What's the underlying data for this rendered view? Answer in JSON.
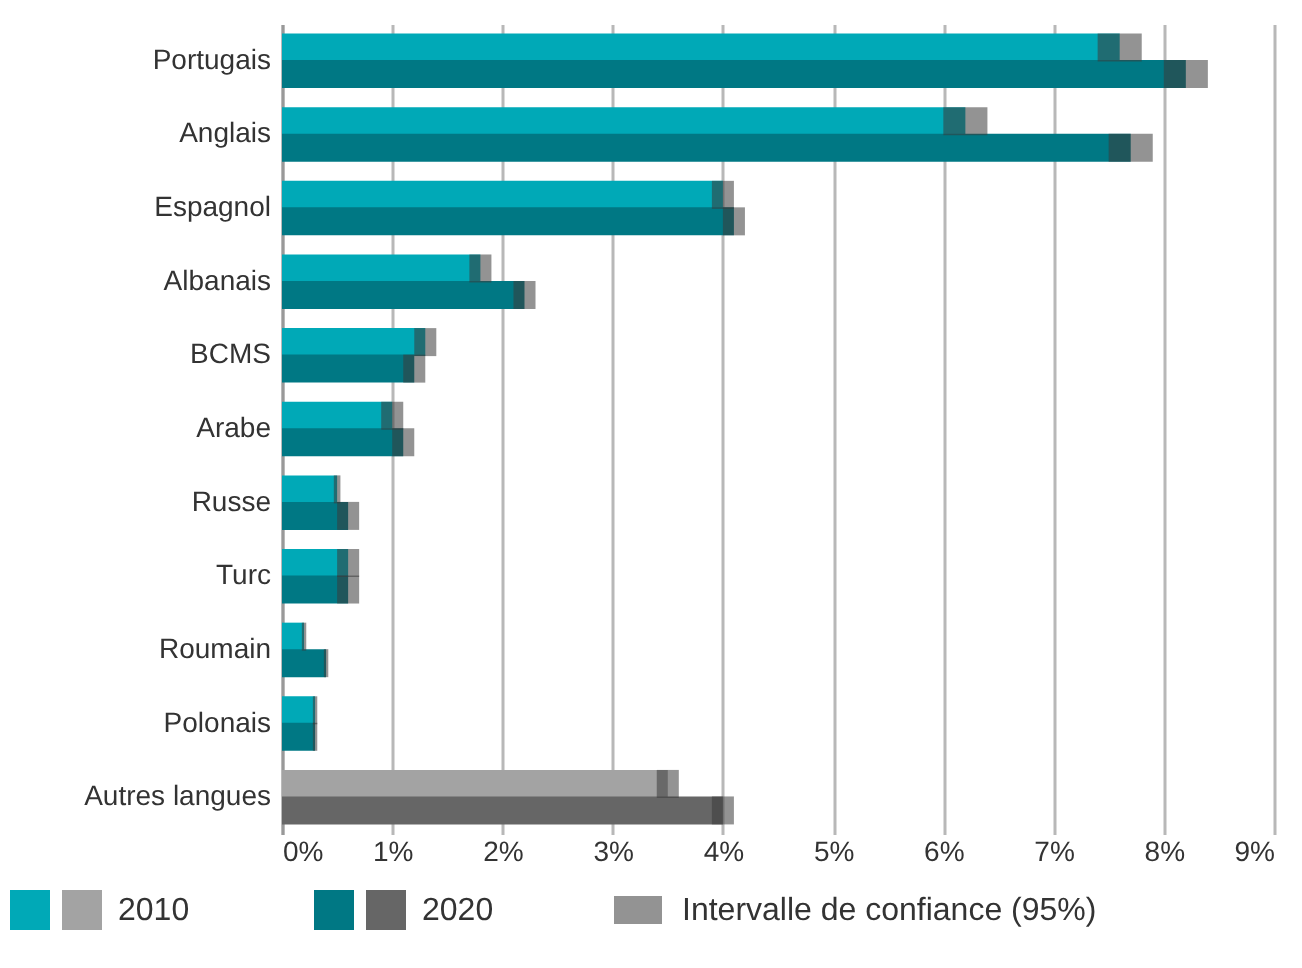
{
  "chart_data": {
    "type": "bar",
    "orientation": "horizontal",
    "categories": [
      "Portugais",
      "Anglais",
      "Espagnol",
      "Albanais",
      "BCMS",
      "Arabe",
      "Russe",
      "Turc",
      "Roumain",
      "Polonais",
      "Autres langues"
    ],
    "series": [
      {
        "name": "2010",
        "color": "#00a9b7",
        "colors": [
          "#00a9b7",
          "#00a9b7",
          "#00a9b7",
          "#00a9b7",
          "#00a9b7",
          "#00a9b7",
          "#00a9b7",
          "#00a9b7",
          "#00a9b7",
          "#00a9b7",
          "#a3a3a3"
        ],
        "values": [
          7.6,
          6.2,
          4.0,
          1.8,
          1.3,
          1.0,
          0.5,
          0.6,
          0.2,
          0.3,
          3.5
        ],
        "errors": [
          0.2,
          0.2,
          0.1,
          0.1,
          0.1,
          0.1,
          0.03,
          0.1,
          0.02,
          0.02,
          0.1
        ]
      },
      {
        "name": "2020",
        "color": "#007884",
        "colors": [
          "#007884",
          "#007884",
          "#007884",
          "#007884",
          "#007884",
          "#007884",
          "#007884",
          "#007884",
          "#007884",
          "#007884",
          "#666666"
        ],
        "values": [
          8.2,
          7.7,
          4.1,
          2.2,
          1.2,
          1.1,
          0.6,
          0.6,
          0.4,
          0.3,
          4.0
        ],
        "errors": [
          0.2,
          0.2,
          0.1,
          0.1,
          0.1,
          0.1,
          0.1,
          0.1,
          0.02,
          0.02,
          0.1
        ]
      }
    ],
    "xlim": [
      0,
      9
    ],
    "xticks": [
      {
        "value": 0,
        "label": "0%"
      },
      {
        "value": 1,
        "label": "1%"
      },
      {
        "value": 2,
        "label": "2%"
      },
      {
        "value": 3,
        "label": "3%"
      },
      {
        "value": 4,
        "label": "4%"
      },
      {
        "value": 5,
        "label": "5%"
      },
      {
        "value": 6,
        "label": "6%"
      },
      {
        "value": 7,
        "label": "7%"
      },
      {
        "value": 8,
        "label": "8%"
      },
      {
        "value": 9,
        "label": "9%"
      }
    ],
    "grid": "x",
    "legend": "bottom",
    "annotations": [
      "Intervalle de confiance (95%)"
    ]
  }
}
